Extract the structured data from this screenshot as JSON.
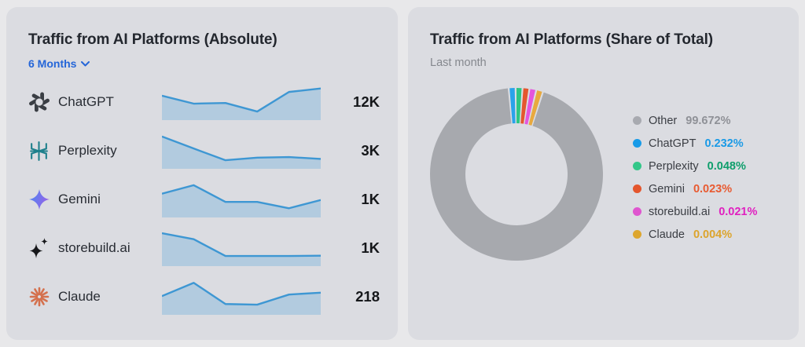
{
  "colors": {
    "page_bg": "#e8e8ea",
    "card_bg": "#dbdce1",
    "title_text": "#23272e",
    "muted_text": "#85888e",
    "accent_blue": "#2566d8",
    "spark_stroke": "#3e97d3",
    "spark_fill": "#b2cbdf",
    "donut_other": "#a7a9ae"
  },
  "left_card": {
    "title": "Traffic from AI Platforms (Absolute)",
    "period_selector": "6 Months",
    "rows": [
      {
        "platform": "ChatGPT",
        "value": "12K",
        "icon": "openai-logo-icon"
      },
      {
        "platform": "Perplexity",
        "value": "3K",
        "icon": "perplexity-logo-icon"
      },
      {
        "platform": "Gemini",
        "value": "1K",
        "icon": "gemini-star-icon"
      },
      {
        "platform": "storebuild.ai",
        "value": "1K",
        "icon": "storebuild-sparkle-icon"
      },
      {
        "platform": "Claude",
        "value": "218",
        "icon": "claude-starburst-icon"
      }
    ]
  },
  "right_card": {
    "title": "Traffic from AI Platforms (Share of Total)",
    "subtitle": "Last month",
    "legend": [
      {
        "label": "Other",
        "value": "99.672%",
        "color": "#a8aab0",
        "value_color": "#8f9197"
      },
      {
        "label": "ChatGPT",
        "value": "0.232%",
        "color": "#189be8",
        "value_color": "#1a9ae6"
      },
      {
        "label": "Perplexity",
        "value": "0.048%",
        "color": "#33c789",
        "value_color": "#0e9e6b"
      },
      {
        "label": "Gemini",
        "value": "0.023%",
        "color": "#e4562d",
        "value_color": "#e85a31"
      },
      {
        "label": "storebuild.ai",
        "value": "0.021%",
        "color": "#df55cf",
        "value_color": "#e020c0"
      },
      {
        "label": "Claude",
        "value": "0.004%",
        "color": "#dda62e",
        "value_color": "#dca42c"
      }
    ]
  },
  "chart_data": [
    {
      "type": "line",
      "variant": "sparkline-area",
      "title": "Traffic from AI Platforms (Absolute)",
      "period": "6 Months",
      "x": [
        1,
        2,
        3,
        4,
        5,
        6
      ],
      "series": [
        {
          "name": "ChatGPT",
          "current_label": "12K",
          "values_norm": [
            0.7,
            0.45,
            0.47,
            0.2,
            0.82,
            0.93
          ]
        },
        {
          "name": "Perplexity",
          "current_label": "3K",
          "values_norm": [
            0.95,
            0.57,
            0.2,
            0.28,
            0.3,
            0.24
          ]
        },
        {
          "name": "Gemini",
          "current_label": "1K",
          "values_norm": [
            0.68,
            0.95,
            0.42,
            0.42,
            0.22,
            0.48
          ]
        },
        {
          "name": "storebuild.ai",
          "current_label": "1K",
          "values_norm": [
            0.97,
            0.78,
            0.25,
            0.25,
            0.25,
            0.26
          ]
        },
        {
          "name": "Claude",
          "current_label": "218",
          "values_norm": [
            0.52,
            0.94,
            0.27,
            0.25,
            0.57,
            0.63
          ]
        }
      ],
      "grid": false,
      "axes_visible": false
    },
    {
      "type": "pie",
      "variant": "donut",
      "title": "Traffic from AI Platforms (Share of Total)",
      "period": "Last month",
      "labels": [
        "Other",
        "ChatGPT",
        "Perplexity",
        "Gemini",
        "storebuild.ai",
        "Claude"
      ],
      "values_pct": [
        99.672,
        0.232,
        0.048,
        0.023,
        0.021,
        0.004
      ],
      "slice_colors": [
        "#a7a9ae",
        "#2aa3ea",
        "#2ec584",
        "#e4572e",
        "#e455dd",
        "#e8a93e"
      ],
      "legend_position": "right",
      "note_small_slices_exaggerated": true
    }
  ]
}
